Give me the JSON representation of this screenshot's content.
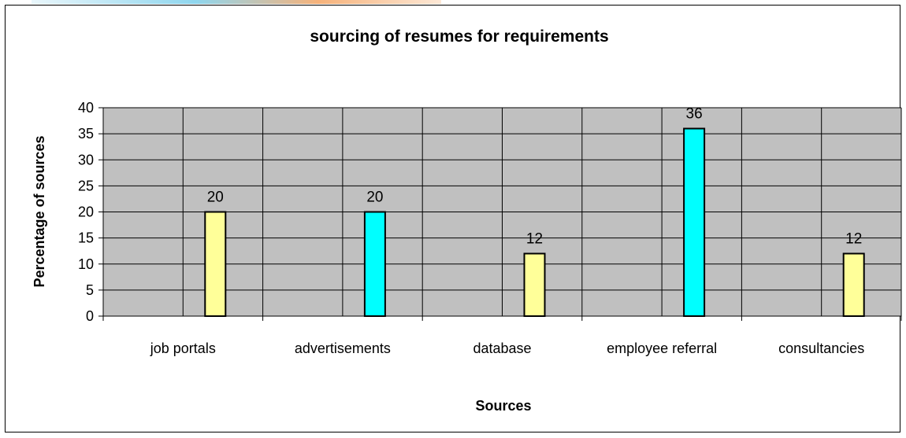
{
  "chart_data": {
    "type": "bar",
    "title": "sourcing of resumes for requirements",
    "xlabel": "Sources",
    "ylabel": "Percentage of sources",
    "categories": [
      "job portals",
      "advertisements",
      "database",
      "employee referral",
      "consultancies"
    ],
    "values": [
      20,
      20,
      12,
      36,
      12
    ],
    "bar_colors": [
      "#ffff99",
      "#00ffff",
      "#ffff99",
      "#00ffff",
      "#ffff99"
    ],
    "ylim": [
      0,
      40
    ],
    "yticks": [
      0,
      5,
      10,
      15,
      20,
      25,
      30,
      35,
      40
    ],
    "grid": true,
    "plot_background": "#c0c0c0",
    "legend": "none"
  }
}
